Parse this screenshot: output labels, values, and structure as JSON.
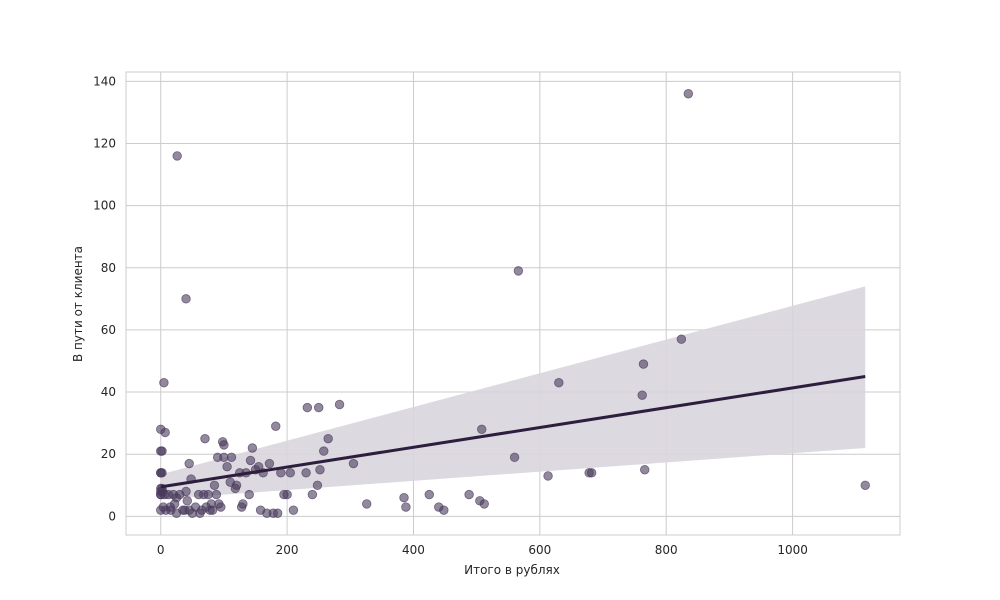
{
  "chart_data": {
    "type": "scatter",
    "xlabel": "Итого в рублях",
    "ylabel": "В пути от клиента",
    "xlim": [
      -55,
      1170
    ],
    "ylim": [
      -6,
      143
    ],
    "xticks": [
      0,
      200,
      400,
      600,
      800,
      1000
    ],
    "yticks": [
      0,
      20,
      40,
      60,
      80,
      100,
      120,
      140
    ],
    "grid": true,
    "colors": {
      "point": "#4a3a5c",
      "regression_line": "#2d1e3e",
      "confidence_band": "#d9d5dd",
      "grid": "#cccccc",
      "frame": "#cccccc"
    },
    "series": [
      {
        "points": [
          [
            0,
            28
          ],
          [
            0,
            21
          ],
          [
            0,
            14
          ],
          [
            0,
            14
          ],
          [
            0,
            9
          ],
          [
            0,
            8
          ],
          [
            0,
            7
          ],
          [
            0,
            7
          ],
          [
            0,
            2
          ],
          [
            2,
            21
          ],
          [
            2,
            14
          ],
          [
            2,
            9
          ],
          [
            3,
            8
          ],
          [
            4,
            3
          ],
          [
            5,
            43
          ],
          [
            6,
            7
          ],
          [
            7,
            27
          ],
          [
            8,
            2
          ],
          [
            12,
            7
          ],
          [
            15,
            3
          ],
          [
            16,
            2
          ],
          [
            20,
            7
          ],
          [
            22,
            4
          ],
          [
            25,
            6
          ],
          [
            25,
            1
          ],
          [
            26,
            116
          ],
          [
            30,
            7
          ],
          [
            35,
            2
          ],
          [
            38,
            2
          ],
          [
            40,
            8
          ],
          [
            40,
            70
          ],
          [
            42,
            5
          ],
          [
            45,
            17
          ],
          [
            45,
            2
          ],
          [
            48,
            12
          ],
          [
            50,
            1
          ],
          [
            55,
            3
          ],
          [
            60,
            7
          ],
          [
            62,
            1
          ],
          [
            65,
            2
          ],
          [
            68,
            7
          ],
          [
            70,
            25
          ],
          [
            72,
            3
          ],
          [
            75,
            7
          ],
          [
            78,
            2
          ],
          [
            80,
            4
          ],
          [
            82,
            2
          ],
          [
            85,
            10
          ],
          [
            88,
            7
          ],
          [
            90,
            19
          ],
          [
            92,
            4
          ],
          [
            95,
            3
          ],
          [
            98,
            24
          ],
          [
            100,
            23
          ],
          [
            100,
            19
          ],
          [
            105,
            16
          ],
          [
            110,
            11
          ],
          [
            112,
            19
          ],
          [
            118,
            9
          ],
          [
            120,
            10
          ],
          [
            125,
            14
          ],
          [
            128,
            3
          ],
          [
            130,
            4
          ],
          [
            135,
            14
          ],
          [
            140,
            7
          ],
          [
            142,
            18
          ],
          [
            145,
            22
          ],
          [
            150,
            15
          ],
          [
            155,
            16
          ],
          [
            158,
            2
          ],
          [
            162,
            14
          ],
          [
            168,
            1
          ],
          [
            172,
            17
          ],
          [
            178,
            1
          ],
          [
            182,
            29
          ],
          [
            185,
            1
          ],
          [
            190,
            14
          ],
          [
            195,
            7
          ],
          [
            200,
            7
          ],
          [
            205,
            14
          ],
          [
            210,
            2
          ],
          [
            230,
            14
          ],
          [
            232,
            35
          ],
          [
            240,
            7
          ],
          [
            248,
            10
          ],
          [
            250,
            35
          ],
          [
            252,
            15
          ],
          [
            258,
            21
          ],
          [
            265,
            25
          ],
          [
            283,
            36
          ],
          [
            305,
            17
          ],
          [
            326,
            4
          ],
          [
            385,
            6
          ],
          [
            388,
            3
          ],
          [
            425,
            7
          ],
          [
            440,
            3
          ],
          [
            448,
            2
          ],
          [
            488,
            7
          ],
          [
            505,
            5
          ],
          [
            508,
            28
          ],
          [
            512,
            4
          ],
          [
            560,
            19
          ],
          [
            566,
            79
          ],
          [
            613,
            13
          ],
          [
            630,
            43
          ],
          [
            678,
            14
          ],
          [
            682,
            14
          ],
          [
            762,
            39
          ],
          [
            764,
            49
          ],
          [
            766,
            15
          ],
          [
            824,
            57
          ],
          [
            835,
            136
          ],
          [
            1115,
            10
          ]
        ]
      }
    ],
    "regression": {
      "x": [
        0,
        1115
      ],
      "y": [
        9.5,
        45
      ],
      "band_lower": [
        5.5,
        22
      ],
      "band_upper": [
        13.5,
        74
      ]
    }
  }
}
